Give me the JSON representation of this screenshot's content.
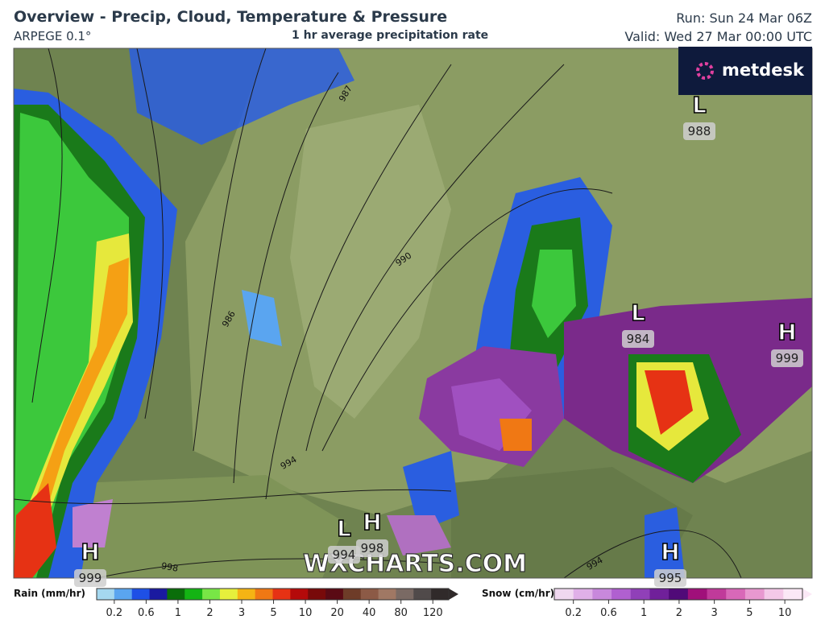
{
  "header": {
    "title": "Overview - Precip, Cloud, Temperature & Pressure",
    "model": "ARPEGE 0.1°",
    "product": "1 hr average precipitation rate",
    "run": "Run: Sun 24 Mar 06Z",
    "valid": "Valid: Wed 27 Mar 00:00 UTC"
  },
  "logo": "metdesk",
  "watermark": "WXCHARTS.COM",
  "pressure_centers": [
    {
      "letter": "L",
      "value": 988
    },
    {
      "letter": "L",
      "value": 984
    },
    {
      "letter": "H",
      "value": 999
    },
    {
      "letter": "L",
      "value": 994
    },
    {
      "letter": "H",
      "value": 998
    },
    {
      "letter": "H",
      "value": 999
    },
    {
      "letter": "H",
      "value": 995
    }
  ],
  "isobar_labels": [
    987,
    990,
    986,
    994,
    998,
    994
  ],
  "rain_legend": {
    "label": "Rain (mm/hr)",
    "ticks": [
      0.2,
      0.6,
      1,
      2,
      3,
      5,
      10,
      20,
      40,
      80,
      120
    ]
  },
  "snow_legend": {
    "label": "Snow (cm/hr)",
    "ticks": [
      0.2,
      0.6,
      1,
      2,
      3,
      5,
      10
    ]
  }
}
